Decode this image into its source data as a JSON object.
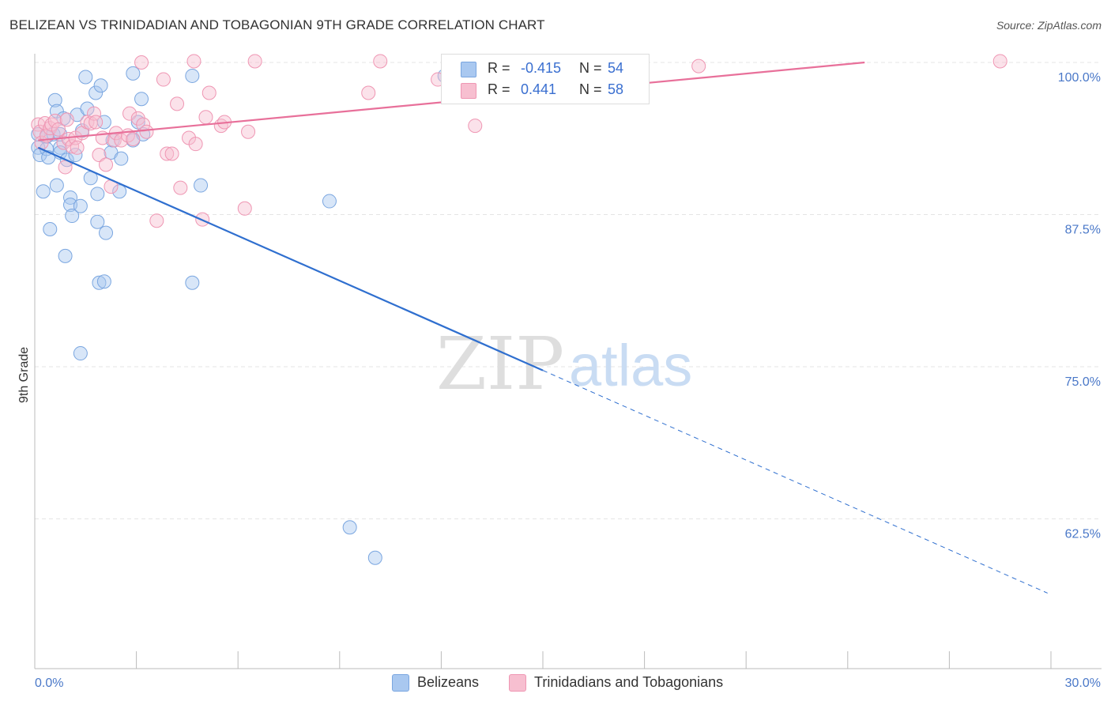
{
  "title": "BELIZEAN VS TRINIDADIAN AND TOBAGONIAN 9TH GRADE CORRELATION CHART",
  "source": "Source: ZipAtlas.com",
  "watermark": {
    "zip": "ZIP",
    "atlas": "atlas"
  },
  "legend_top": [
    {
      "r_label": "R =",
      "r_value": "-0.415",
      "n_label": "N =",
      "n_value": "54",
      "color": "#a9c8f0",
      "border": "#7aa6e0"
    },
    {
      "r_label": "R =",
      "r_value": "0.441",
      "n_label": "N =",
      "n_value": "58",
      "color": "#f7bfd0",
      "border": "#ef96b3"
    }
  ],
  "legend_bottom": [
    {
      "label": "Belizeans",
      "color": "#a9c8f0",
      "border": "#7aa6e0"
    },
    {
      "label": "Trinidadians and Tobagonians",
      "color": "#f7bfd0",
      "border": "#ef96b3"
    }
  ],
  "chart_data": {
    "type": "scatter",
    "title": "BELIZEAN VS TRINIDADIAN AND TOBAGONIAN 9TH GRADE CORRELATION CHART",
    "xlabel": "",
    "ylabel": "9th Grade",
    "xlim": [
      0,
      30
    ],
    "ylim": [
      50,
      100
    ],
    "x_tick_labels": [
      "0.0%",
      "30.0%"
    ],
    "y_ticks": [
      62.5,
      75.0,
      87.5,
      100.0
    ],
    "y_tick_labels": [
      "62.5%",
      "75.0%",
      "87.5%",
      "100.0%"
    ],
    "grid": true,
    "series": [
      {
        "name": "Belizeans",
        "color": "#7aa6e0",
        "line_color": "#2f6fcf",
        "trend": {
          "x0": 0.1,
          "y0": 93.0,
          "x1": 15.0,
          "y1": 74.7,
          "dash_to_x": 29.9,
          "dash_to_y": 56.4
        },
        "points": [
          [
            0.1,
            94.1
          ],
          [
            0.1,
            93.0
          ],
          [
            0.15,
            92.4
          ],
          [
            0.25,
            89.4
          ],
          [
            0.35,
            93.9
          ],
          [
            0.35,
            92.9
          ],
          [
            0.4,
            92.2
          ],
          [
            0.45,
            86.3
          ],
          [
            0.55,
            94.1
          ],
          [
            0.6,
            96.9
          ],
          [
            0.65,
            96.0
          ],
          [
            0.65,
            89.9
          ],
          [
            0.75,
            94.1
          ],
          [
            0.75,
            93.0
          ],
          [
            0.75,
            92.6
          ],
          [
            0.85,
            95.4
          ],
          [
            0.9,
            84.1
          ],
          [
            0.95,
            92.0
          ],
          [
            1.05,
            88.9
          ],
          [
            1.05,
            88.3
          ],
          [
            1.1,
            87.4
          ],
          [
            1.2,
            92.4
          ],
          [
            1.25,
            95.7
          ],
          [
            1.35,
            88.2
          ],
          [
            1.35,
            76.1
          ],
          [
            1.4,
            94.4
          ],
          [
            1.5,
            98.8
          ],
          [
            1.55,
            96.2
          ],
          [
            1.65,
            90.5
          ],
          [
            1.8,
            97.5
          ],
          [
            1.85,
            89.2
          ],
          [
            1.85,
            86.9
          ],
          [
            1.9,
            81.9
          ],
          [
            1.95,
            98.1
          ],
          [
            2.05,
            82.0
          ],
          [
            2.05,
            95.1
          ],
          [
            2.1,
            86.0
          ],
          [
            2.25,
            92.6
          ],
          [
            2.3,
            93.6
          ],
          [
            2.5,
            89.4
          ],
          [
            2.55,
            92.1
          ],
          [
            2.9,
            93.6
          ],
          [
            2.9,
            99.1
          ],
          [
            3.05,
            95.1
          ],
          [
            3.15,
            97.0
          ],
          [
            3.2,
            94.1
          ],
          [
            4.65,
            98.9
          ],
          [
            4.65,
            81.9
          ],
          [
            4.9,
            89.9
          ],
          [
            8.7,
            88.6
          ],
          [
            9.3,
            61.8
          ],
          [
            10.05,
            59.3
          ],
          [
            12.1,
            98.9
          ],
          [
            12.3,
            98.9
          ]
        ]
      },
      {
        "name": "Trinidadians and Tobagonians",
        "color": "#ef96b3",
        "line_color": "#e8709a",
        "trend": {
          "x0": 0.1,
          "y0": 93.6,
          "x1": 24.5,
          "y1": 100.0
        },
        "points": [
          [
            0.1,
            94.9
          ],
          [
            0.15,
            94.3
          ],
          [
            0.2,
            93.4
          ],
          [
            0.3,
            95.0
          ],
          [
            0.35,
            94.0
          ],
          [
            0.45,
            94.6
          ],
          [
            0.5,
            94.9
          ],
          [
            0.6,
            95.2
          ],
          [
            0.7,
            94.5
          ],
          [
            0.85,
            93.4
          ],
          [
            0.9,
            91.4
          ],
          [
            0.95,
            95.3
          ],
          [
            1.0,
            93.7
          ],
          [
            1.1,
            93.1
          ],
          [
            1.2,
            93.8
          ],
          [
            1.25,
            93.0
          ],
          [
            1.4,
            94.2
          ],
          [
            1.55,
            95.1
          ],
          [
            1.65,
            95.0
          ],
          [
            1.75,
            95.8
          ],
          [
            1.8,
            95.1
          ],
          [
            1.9,
            92.4
          ],
          [
            2.0,
            93.8
          ],
          [
            2.1,
            91.6
          ],
          [
            2.25,
            89.8
          ],
          [
            2.35,
            93.6
          ],
          [
            2.4,
            94.2
          ],
          [
            2.55,
            93.6
          ],
          [
            2.75,
            94.0
          ],
          [
            2.8,
            95.8
          ],
          [
            2.9,
            93.7
          ],
          [
            3.05,
            95.4
          ],
          [
            3.15,
            100.0
          ],
          [
            3.2,
            94.9
          ],
          [
            3.3,
            94.3
          ],
          [
            3.6,
            87.0
          ],
          [
            3.8,
            98.6
          ],
          [
            3.9,
            92.5
          ],
          [
            4.05,
            92.5
          ],
          [
            4.2,
            96.6
          ],
          [
            4.3,
            89.7
          ],
          [
            4.55,
            93.8
          ],
          [
            4.7,
            100.1
          ],
          [
            4.75,
            93.3
          ],
          [
            4.95,
            87.1
          ],
          [
            5.05,
            95.5
          ],
          [
            5.15,
            97.5
          ],
          [
            5.5,
            94.8
          ],
          [
            5.6,
            95.1
          ],
          [
            6.2,
            88.0
          ],
          [
            6.3,
            94.3
          ],
          [
            6.5,
            100.1
          ],
          [
            9.85,
            97.5
          ],
          [
            10.2,
            100.1
          ],
          [
            11.9,
            98.6
          ],
          [
            13.0,
            94.8
          ],
          [
            19.6,
            99.7
          ],
          [
            28.5,
            100.1
          ]
        ]
      }
    ]
  }
}
